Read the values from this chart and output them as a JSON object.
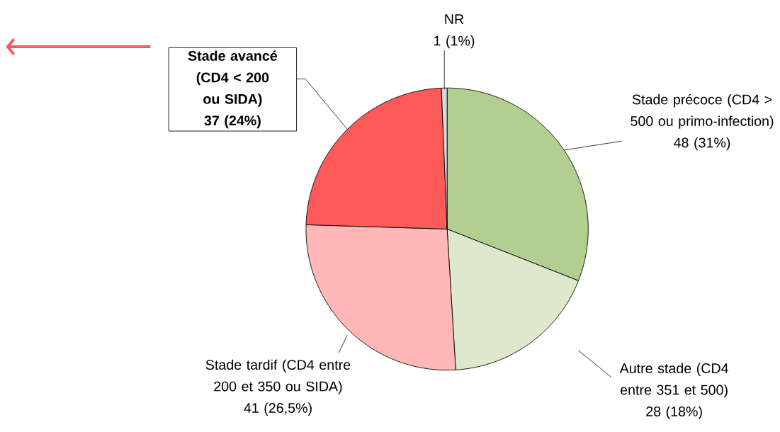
{
  "chart_data": {
    "type": "pie",
    "categories": [
      "Stade précoce (CD4 > 500 ou primo-infection)",
      "Autre stade (CD4 entre 351 et 500)",
      "Stade tardif (CD4 entre 200 et 350 ou SIDA)",
      "Stade avancé (CD4 < 200 ou SIDA)",
      "NR"
    ],
    "values": [
      48,
      28,
      41,
      37,
      1
    ],
    "colors": [
      "#b3cf8f",
      "#dde8cc",
      "#ffb7b7",
      "#ff5a5a",
      "#d9d9d9"
    ],
    "value_labels": [
      "48 (31%)",
      "28 (18%)",
      "41 (26,5%)",
      "37 (24%)",
      "1 (1%)"
    ]
  }
}
